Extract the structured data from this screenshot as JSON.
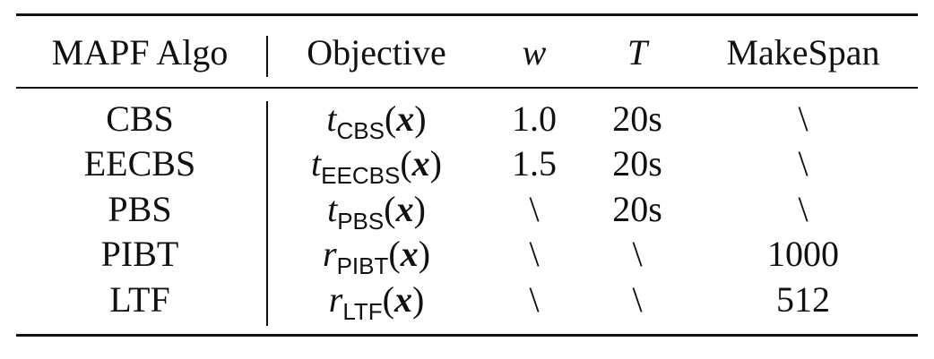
{
  "table": {
    "headers": {
      "algo": "MAPF Algo",
      "objective": "Objective",
      "w": "w",
      "T": "T",
      "makespan": "MakeSpan"
    },
    "rows": [
      {
        "algo": "CBS",
        "obj_var": "t",
        "obj_sub": "CBS",
        "obj_arg": "x",
        "w": "1.0",
        "T": "20s",
        "makespan": "\\"
      },
      {
        "algo": "EECBS",
        "obj_var": "t",
        "obj_sub": "EECBS",
        "obj_arg": "x",
        "w": "1.5",
        "T": "20s",
        "makespan": "\\"
      },
      {
        "algo": "PBS",
        "obj_var": "t",
        "obj_sub": "PBS",
        "obj_arg": "x",
        "w": "\\",
        "T": "20s",
        "makespan": "\\"
      },
      {
        "algo": "PIBT",
        "obj_var": "r",
        "obj_sub": "PIBT",
        "obj_arg": "x",
        "w": "\\",
        "T": "\\",
        "makespan": "1000"
      },
      {
        "algo": "LTF",
        "obj_var": "r",
        "obj_sub": "LTF",
        "obj_arg": "x",
        "w": "\\",
        "T": "\\",
        "makespan": "512"
      }
    ]
  }
}
